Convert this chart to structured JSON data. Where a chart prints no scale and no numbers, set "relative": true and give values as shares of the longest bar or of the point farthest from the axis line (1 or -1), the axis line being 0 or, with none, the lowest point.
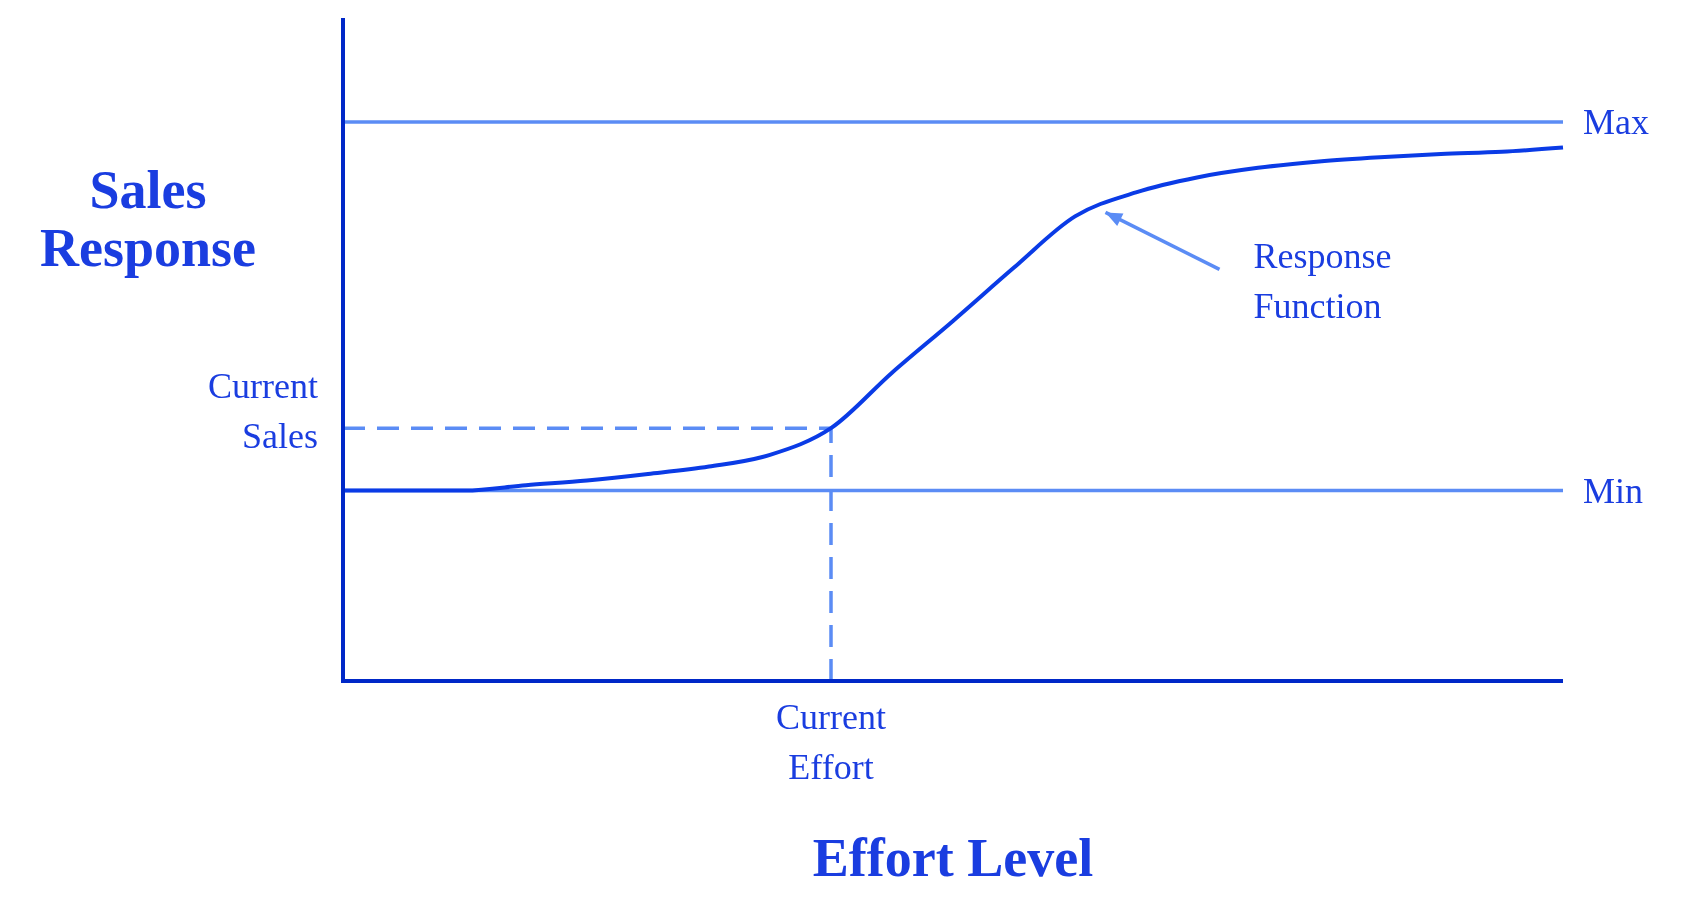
{
  "chart_data": {
    "type": "line",
    "relative": true,
    "xlabel": "Effort Level",
    "ylabel": "Sales Response",
    "categories": [
      null,
      null,
      null,
      null,
      null,
      null,
      null,
      null,
      null,
      null,
      null,
      null,
      null,
      null,
      null,
      null,
      null,
      null,
      null,
      null,
      null
    ],
    "series": [
      {
        "color": "#0a3be6",
        "values": [
          0.357,
          0.357,
          0.357,
          0.367,
          0.376,
          0.388,
          0.402,
          0.424,
          0.474,
          0.578,
          0.675,
          0.775,
          0.871,
          0.916,
          0.944,
          0.962,
          0.974,
          0.982,
          0.988,
          0.992,
          1
        ]
      }
    ],
    "ref_lines": [
      {
        "axis": "y",
        "value": 1.048,
        "label": "Max",
        "color": "#5b8cf5",
        "line_style": "solid"
      },
      {
        "axis": "y",
        "value": 0.357,
        "label": "Min",
        "color": "#5b8cf5",
        "line_style": "solid"
      },
      {
        "axis": "y",
        "value": 0.474,
        "label": "Current Sales",
        "color": "#5b8cf5",
        "line_style": "dashed"
      }
    ],
    "annotations": [
      "Response Function",
      "Current Effort"
    ]
  }
}
